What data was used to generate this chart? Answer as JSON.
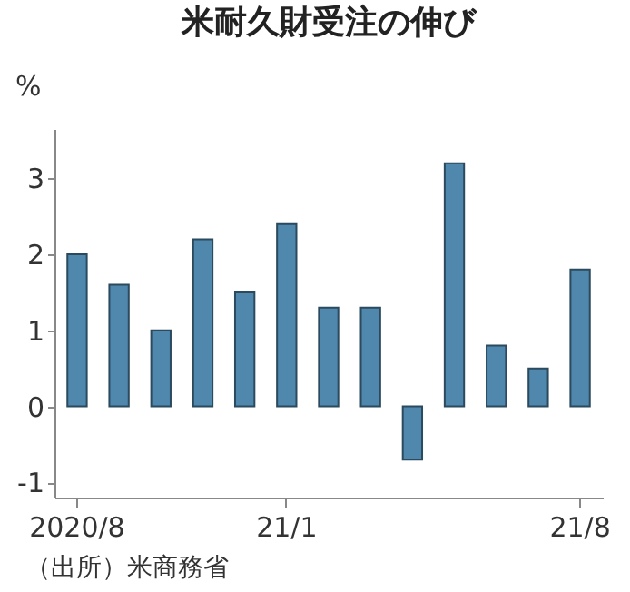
{
  "chart_data": {
    "type": "bar",
    "title": "米耐久財受注の伸び",
    "ylabel": "%",
    "annotations": [
      "（出所）米商務省"
    ],
    "categories": [
      "2020/8",
      null,
      null,
      null,
      null,
      "21/1",
      null,
      null,
      null,
      null,
      null,
      null,
      "21/8"
    ],
    "values": [
      2.0,
      1.6,
      1.0,
      2.2,
      1.5,
      2.4,
      1.3,
      1.3,
      -0.7,
      3.2,
      0.8,
      0.5,
      1.8
    ],
    "color": "#4f87ad",
    "ylim": [
      -1.2,
      3.65
    ],
    "yticks": [
      -1,
      0,
      1,
      2,
      3
    ],
    "grid": false
  }
}
